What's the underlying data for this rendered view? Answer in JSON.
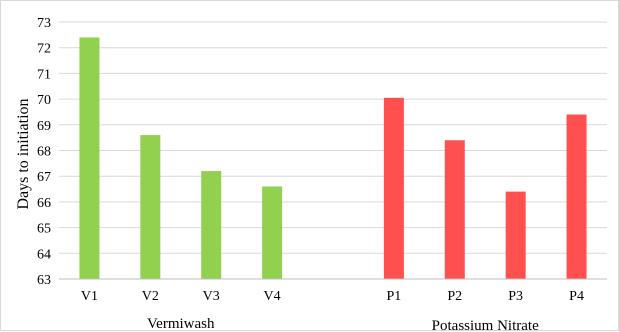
{
  "chart_data": {
    "type": "bar",
    "ylabel": "Days to initiation",
    "ylim": [
      63,
      73
    ],
    "yticks": [
      63,
      64,
      65,
      66,
      67,
      68,
      69,
      70,
      71,
      72,
      73
    ],
    "grid": true,
    "legend": "none",
    "categories": [
      "V1",
      "V2",
      "V3",
      "V4",
      "P1",
      "P2",
      "P3",
      "P4"
    ],
    "groups": [
      {
        "label": "Vermiwash",
        "categories": [
          "V1",
          "V2",
          "V3",
          "V4"
        ],
        "values": [
          72.4,
          68.6,
          67.2,
          66.6
        ],
        "color": "#92d050"
      },
      {
        "label": "Potassium Nitrate",
        "categories": [
          "P1",
          "P2",
          "P3",
          "P4"
        ],
        "values": [
          70.05,
          68.4,
          66.4,
          69.4
        ],
        "color": "#ff5050"
      }
    ]
  }
}
